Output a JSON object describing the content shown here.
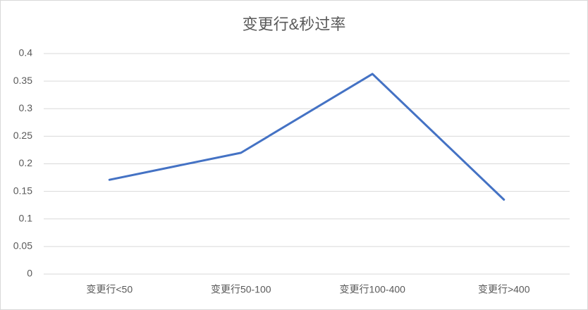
{
  "chart_data": {
    "type": "line",
    "title": "变更行&秒过率",
    "categories": [
      "变更行<50",
      "变更行50-100",
      "变更行100-400",
      "变更行>400"
    ],
    "series": [
      {
        "color": "#4472c4",
        "values": [
          0.171,
          0.22,
          0.363,
          0.135
        ]
      }
    ],
    "ylim": [
      0,
      0.4
    ],
    "yticks": [
      0,
      0.05,
      0.1,
      0.15,
      0.2,
      0.25,
      0.3,
      0.35,
      0.4
    ],
    "grid": true
  }
}
